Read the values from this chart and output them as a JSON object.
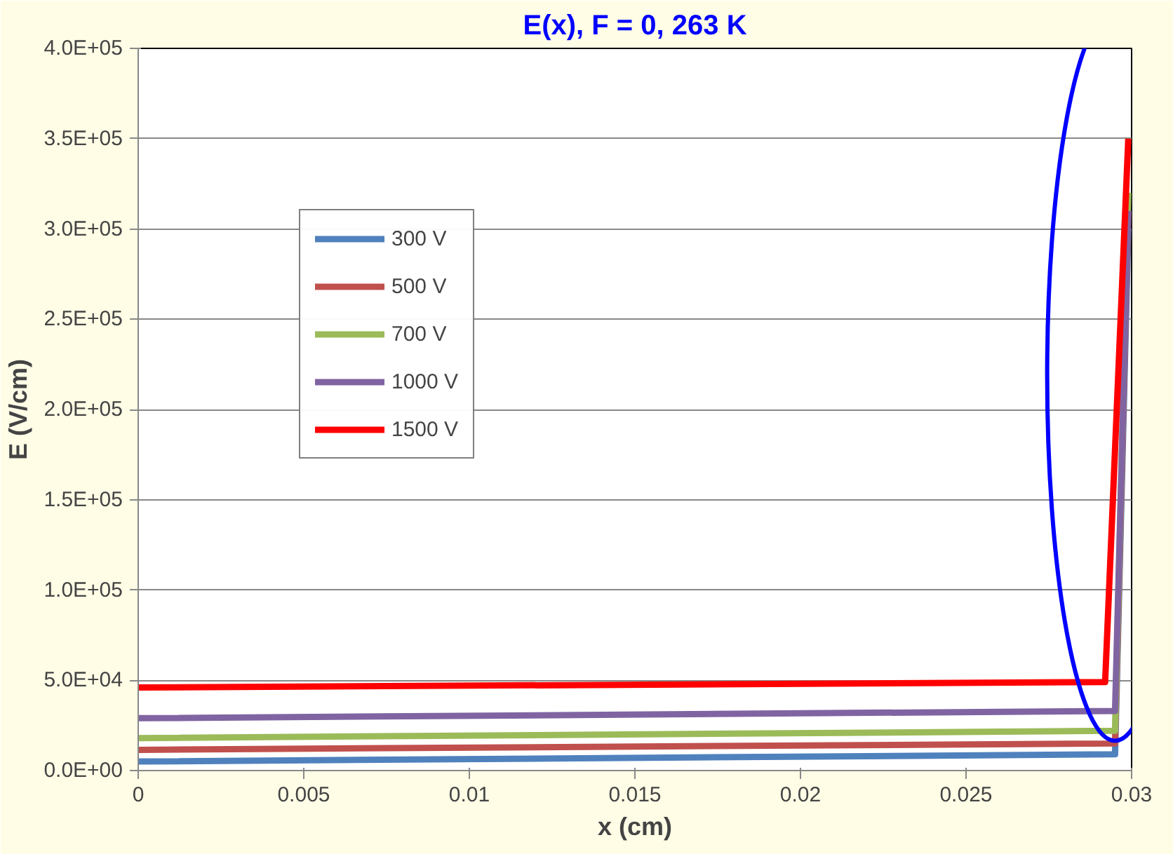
{
  "chart_data": {
    "type": "line",
    "title": "E(x), F = 0, 263 K",
    "xlabel": "x (cm)",
    "ylabel": "E (V/cm)",
    "xlim": [
      0,
      0.03
    ],
    "ylim": [
      0,
      400000
    ],
    "xticks": [
      0,
      0.005,
      0.01,
      0.015,
      0.02,
      0.025,
      0.03
    ],
    "yticks": [
      {
        "value": 0,
        "label": "0.0E+00"
      },
      {
        "value": 50000,
        "label": "5.0E+04"
      },
      {
        "value": 100000,
        "label": "1.0E+05"
      },
      {
        "value": 150000,
        "label": "1.5E+05"
      },
      {
        "value": 200000,
        "label": "2.0E+05"
      },
      {
        "value": 250000,
        "label": "2.5E+05"
      },
      {
        "value": 300000,
        "label": "3.0E+05"
      },
      {
        "value": 350000,
        "label": "3.5E+05"
      },
      {
        "value": 400000,
        "label": "4.0E+05"
      }
    ],
    "grid": "y",
    "legend": "top left",
    "marker": "none",
    "line_style": "solid",
    "series": [
      {
        "name": "300 V",
        "color": "#4f81bd",
        "x": [
          0,
          0.0295,
          0.0299
        ],
        "values": [
          5000,
          9000,
          300000
        ]
      },
      {
        "name": "500 V",
        "color": "#c0504d",
        "x": [
          0,
          0.0295,
          0.0299
        ],
        "values": [
          11500,
          15000,
          310000
        ]
      },
      {
        "name": "700 V",
        "color": "#9bbb59",
        "x": [
          0,
          0.0295,
          0.0299
        ],
        "values": [
          18000,
          22000,
          320000
        ]
      },
      {
        "name": "1000 V",
        "color": "#8064a2",
        "x": [
          0,
          0.0295,
          0.0299
        ],
        "values": [
          29000,
          33000,
          310000
        ]
      },
      {
        "name": "1500 V",
        "color": "#ff0000",
        "x": [
          0,
          0.0292,
          0.0299
        ],
        "values": [
          46000,
          49000,
          350000
        ]
      }
    ]
  }
}
